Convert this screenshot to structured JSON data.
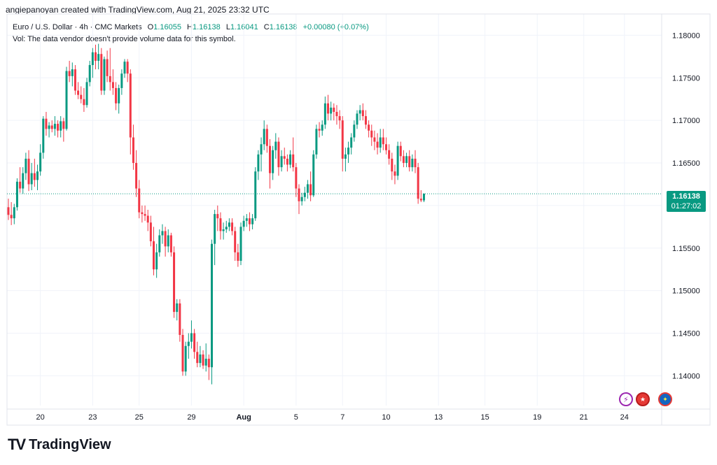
{
  "header": {
    "caption": "angiepanoyan created with TradingView.com, Aug 21, 2025 23:32 UTC"
  },
  "legend": {
    "symbol": "Euro / U.S. Dollar · 4h · CMC Markets",
    "o_key": "O",
    "o_val": "1.16055",
    "h_key": "H",
    "h_val": "1.16138",
    "l_key": "L",
    "l_val": "1.16041",
    "c_key": "C",
    "c_val": "1.16138",
    "change": "+0.00080 (+0.07%)"
  },
  "volume_note": "Vol: The data vendor doesn't provide volume data for this symbol.",
  "price_badge": {
    "price": "1.16138",
    "countdown": "01:27:02"
  },
  "icons": [
    "flash-icon",
    "us-flag-icon",
    "eu-flag-icon"
  ],
  "logo": {
    "text": "TradingView",
    "mark": "TV"
  },
  "colors": {
    "up": "#089981",
    "down": "#f23645",
    "grid": "#f0f3fa",
    "last_price": "#089981"
  },
  "chart_data": {
    "type": "candlestick",
    "title": "Euro / U.S. Dollar · 4h · CMC Markets",
    "ylim": [
      1.1365,
      1.1825
    ],
    "y_ticks": [
      1.18,
      1.175,
      1.17,
      1.165,
      1.16,
      1.155,
      1.15,
      1.145,
      1.14
    ],
    "y_tick_labels": [
      "1.18000",
      "1.17500",
      "1.17000",
      "1.16500",
      "",
      "1.15500",
      "1.15000",
      "1.14500",
      "1.14000"
    ],
    "x_ticks": [
      {
        "label": "20",
        "bar": 11,
        "month": false
      },
      {
        "label": "23",
        "bar": 29,
        "month": false
      },
      {
        "label": "25",
        "bar": 45,
        "month": false
      },
      {
        "label": "29",
        "bar": 63,
        "month": false
      },
      {
        "label": "Aug",
        "bar": 81,
        "month": true
      },
      {
        "label": "5",
        "bar": 99,
        "month": false
      },
      {
        "label": "7",
        "bar": 115,
        "month": false
      },
      {
        "label": "10",
        "bar": 130,
        "month": false
      },
      {
        "label": "13",
        "bar": 148,
        "month": false
      },
      {
        "label": "15",
        "bar": 164,
        "month": false
      },
      {
        "label": "19",
        "bar": 182,
        "month": false
      },
      {
        "label": "21",
        "bar": 198,
        "month": false
      },
      {
        "label": "24",
        "bar": 212,
        "month": false
      }
    ],
    "last_price": 1.16138,
    "grid": true,
    "candles": [
      [
        1.1598,
        1.1608,
        1.1583,
        1.1589
      ],
      [
        1.1589,
        1.1604,
        1.1577,
        1.1585
      ],
      [
        1.1585,
        1.1602,
        1.1578,
        1.1598
      ],
      [
        1.1598,
        1.1632,
        1.1594,
        1.1628
      ],
      [
        1.1628,
        1.1645,
        1.1615,
        1.162
      ],
      [
        1.162,
        1.1645,
        1.1614,
        1.1638
      ],
      [
        1.1638,
        1.1662,
        1.163,
        1.1655
      ],
      [
        1.1655,
        1.1665,
        1.1617,
        1.1625
      ],
      [
        1.1625,
        1.165,
        1.1618,
        1.1638
      ],
      [
        1.1638,
        1.1655,
        1.1622,
        1.163
      ],
      [
        1.163,
        1.1648,
        1.1618,
        1.164
      ],
      [
        1.164,
        1.1672,
        1.1635,
        1.1662
      ],
      [
        1.1662,
        1.1705,
        1.1655,
        1.1702
      ],
      [
        1.1702,
        1.171,
        1.1682,
        1.169
      ],
      [
        1.169,
        1.1698,
        1.168,
        1.1694
      ],
      [
        1.1694,
        1.17,
        1.1686,
        1.169
      ],
      [
        1.169,
        1.1705,
        1.1682,
        1.1696
      ],
      [
        1.1696,
        1.17,
        1.168,
        1.1688
      ],
      [
        1.1688,
        1.1705,
        1.168,
        1.1699
      ],
      [
        1.1699,
        1.1703,
        1.1675,
        1.169
      ],
      [
        1.169,
        1.1763,
        1.1688,
        1.1758
      ],
      [
        1.1758,
        1.177,
        1.1745,
        1.1752
      ],
      [
        1.1752,
        1.1768,
        1.174,
        1.176
      ],
      [
        1.176,
        1.1765,
        1.173,
        1.1735
      ],
      [
        1.1735,
        1.1745,
        1.1725,
        1.173
      ],
      [
        1.173,
        1.174,
        1.172,
        1.1725
      ],
      [
        1.1725,
        1.1738,
        1.171,
        1.1718
      ],
      [
        1.1718,
        1.175,
        1.1715,
        1.1745
      ],
      [
        1.1745,
        1.177,
        1.174,
        1.1765
      ],
      [
        1.1765,
        1.1785,
        1.175,
        1.178
      ],
      [
        1.178,
        1.1789,
        1.176,
        1.177
      ],
      [
        1.177,
        1.179,
        1.176,
        1.1778
      ],
      [
        1.1778,
        1.1785,
        1.173,
        1.1735
      ],
      [
        1.1735,
        1.1775,
        1.173,
        1.1772
      ],
      [
        1.1772,
        1.1782,
        1.1745,
        1.1752
      ],
      [
        1.1752,
        1.1785,
        1.1735,
        1.1745
      ],
      [
        1.1745,
        1.176,
        1.173,
        1.1738
      ],
      [
        1.1738,
        1.1745,
        1.1712,
        1.172
      ],
      [
        1.172,
        1.1742,
        1.1708,
        1.1738
      ],
      [
        1.1738,
        1.176,
        1.173,
        1.1755
      ],
      [
        1.1755,
        1.1772,
        1.175,
        1.1769
      ],
      [
        1.1769,
        1.1772,
        1.1745,
        1.1755
      ],
      [
        1.1755,
        1.176,
        1.166,
        1.168
      ],
      [
        1.168,
        1.1695,
        1.1642,
        1.165
      ],
      [
        1.165,
        1.1665,
        1.161,
        1.162
      ],
      [
        1.162,
        1.163,
        1.1585,
        1.1592
      ],
      [
        1.1592,
        1.16,
        1.158,
        1.159
      ],
      [
        1.159,
        1.16,
        1.1582,
        1.1588
      ],
      [
        1.1588,
        1.1595,
        1.157,
        1.158
      ],
      [
        1.158,
        1.1588,
        1.1552,
        1.1558
      ],
      [
        1.1558,
        1.1575,
        1.1518,
        1.1525
      ],
      [
        1.1525,
        1.1555,
        1.1515,
        1.1545
      ],
      [
        1.1545,
        1.1572,
        1.154,
        1.1565
      ],
      [
        1.1565,
        1.1578,
        1.1555,
        1.157
      ],
      [
        1.157,
        1.1575,
        1.154,
        1.1552
      ],
      [
        1.1552,
        1.1572,
        1.1545,
        1.1565
      ],
      [
        1.1565,
        1.1568,
        1.154,
        1.1545
      ],
      [
        1.1545,
        1.1552,
        1.1468,
        1.1475
      ],
      [
        1.1475,
        1.149,
        1.1465,
        1.1485
      ],
      [
        1.1485,
        1.149,
        1.144,
        1.1448
      ],
      [
        1.1448,
        1.1455,
        1.14,
        1.1405
      ],
      [
        1.1405,
        1.144,
        1.14,
        1.1435
      ],
      [
        1.1435,
        1.145,
        1.142,
        1.144
      ],
      [
        1.144,
        1.1465,
        1.1432,
        1.145
      ],
      [
        1.145,
        1.1455,
        1.142,
        1.1428
      ],
      [
        1.1428,
        1.144,
        1.141,
        1.1415
      ],
      [
        1.1415,
        1.1435,
        1.141,
        1.1425
      ],
      [
        1.1425,
        1.143,
        1.1408,
        1.1412
      ],
      [
        1.1412,
        1.1438,
        1.1405,
        1.142
      ],
      [
        1.142,
        1.1425,
        1.1395,
        1.141
      ],
      [
        1.141,
        1.156,
        1.139,
        1.1555
      ],
      [
        1.1555,
        1.1595,
        1.153,
        1.159
      ],
      [
        1.159,
        1.16,
        1.157,
        1.1585
      ],
      [
        1.1585,
        1.1592,
        1.156,
        1.157
      ],
      [
        1.157,
        1.158,
        1.156,
        1.1572
      ],
      [
        1.1572,
        1.1582,
        1.1568,
        1.1575
      ],
      [
        1.1575,
        1.1585,
        1.157,
        1.158
      ],
      [
        1.158,
        1.1585,
        1.1565,
        1.157
      ],
      [
        1.157,
        1.1575,
        1.1535,
        1.1545
      ],
      [
        1.1545,
        1.1555,
        1.1528,
        1.1535
      ],
      [
        1.1535,
        1.158,
        1.153,
        1.1575
      ],
      [
        1.1575,
        1.1588,
        1.157,
        1.1582
      ],
      [
        1.1582,
        1.159,
        1.1575,
        1.1585
      ],
      [
        1.1585,
        1.1592,
        1.157,
        1.1578
      ],
      [
        1.1578,
        1.159,
        1.1572,
        1.1585
      ],
      [
        1.1585,
        1.1645,
        1.1582,
        1.164
      ],
      [
        1.164,
        1.1665,
        1.163,
        1.166
      ],
      [
        1.166,
        1.168,
        1.164,
        1.1672
      ],
      [
        1.1672,
        1.17,
        1.1665,
        1.169
      ],
      [
        1.169,
        1.1695,
        1.1662,
        1.167
      ],
      [
        1.167,
        1.1678,
        1.162,
        1.1638
      ],
      [
        1.1638,
        1.167,
        1.163,
        1.1665
      ],
      [
        1.1665,
        1.1685,
        1.1655,
        1.1675
      ],
      [
        1.1675,
        1.168,
        1.1635,
        1.1645
      ],
      [
        1.1645,
        1.1665,
        1.164,
        1.1658
      ],
      [
        1.1658,
        1.1668,
        1.1648,
        1.1655
      ],
      [
        1.1655,
        1.166,
        1.164,
        1.1648
      ],
      [
        1.1648,
        1.1665,
        1.1644,
        1.166
      ],
      [
        1.166,
        1.168,
        1.164,
        1.1645
      ],
      [
        1.1645,
        1.165,
        1.161,
        1.162
      ],
      [
        1.162,
        1.1625,
        1.159,
        1.1605
      ],
      [
        1.1605,
        1.1615,
        1.16,
        1.161
      ],
      [
        1.161,
        1.1622,
        1.1605,
        1.1615
      ],
      [
        1.1615,
        1.163,
        1.1608,
        1.1625
      ],
      [
        1.1625,
        1.164,
        1.1605,
        1.1612
      ],
      [
        1.1612,
        1.1665,
        1.161,
        1.166
      ],
      [
        1.166,
        1.1695,
        1.1655,
        1.169
      ],
      [
        1.169,
        1.1698,
        1.168,
        1.1688
      ],
      [
        1.1688,
        1.17,
        1.1682,
        1.1695
      ],
      [
        1.1695,
        1.1728,
        1.169,
        1.172
      ],
      [
        1.172,
        1.173,
        1.17,
        1.1708
      ],
      [
        1.1708,
        1.1722,
        1.17,
        1.1715
      ],
      [
        1.1715,
        1.172,
        1.17,
        1.171
      ],
      [
        1.171,
        1.1718,
        1.1695,
        1.1705
      ],
      [
        1.1705,
        1.1712,
        1.169,
        1.17
      ],
      [
        1.17,
        1.1705,
        1.164,
        1.1655
      ],
      [
        1.1655,
        1.1668,
        1.164,
        1.166
      ],
      [
        1.166,
        1.1675,
        1.165,
        1.1668
      ],
      [
        1.1668,
        1.1685,
        1.166,
        1.168
      ],
      [
        1.168,
        1.17,
        1.1675,
        1.1695
      ],
      [
        1.1695,
        1.1712,
        1.169,
        1.1708
      ],
      [
        1.1708,
        1.1718,
        1.17,
        1.1712
      ],
      [
        1.1712,
        1.172,
        1.17,
        1.1705
      ],
      [
        1.1705,
        1.1712,
        1.169,
        1.1695
      ],
      [
        1.1695,
        1.17,
        1.168,
        1.1688
      ],
      [
        1.1688,
        1.1695,
        1.167,
        1.168
      ],
      [
        1.168,
        1.1688,
        1.1665,
        1.1675
      ],
      [
        1.1675,
        1.1685,
        1.166,
        1.1668
      ],
      [
        1.1668,
        1.169,
        1.1662,
        1.168
      ],
      [
        1.168,
        1.169,
        1.1665,
        1.1672
      ],
      [
        1.1672,
        1.168,
        1.166,
        1.1665
      ],
      [
        1.1665,
        1.1672,
        1.1648,
        1.1655
      ],
      [
        1.1655,
        1.1662,
        1.163,
        1.164
      ],
      [
        1.164,
        1.1648,
        1.1625,
        1.1635
      ],
      [
        1.1635,
        1.1675,
        1.163,
        1.167
      ],
      [
        1.167,
        1.1675,
        1.1652,
        1.1658
      ],
      [
        1.1658,
        1.1665,
        1.1645,
        1.165
      ],
      [
        1.165,
        1.1662,
        1.1645,
        1.1658
      ],
      [
        1.1658,
        1.1665,
        1.164,
        1.1645
      ],
      [
        1.1645,
        1.166,
        1.164,
        1.1655
      ],
      [
        1.1655,
        1.1665,
        1.1638,
        1.1645
      ],
      [
        1.1645,
        1.165,
        1.1602,
        1.1608
      ],
      [
        1.1608,
        1.1618,
        1.1604,
        1.1606
      ],
      [
        1.1606,
        1.1614,
        1.1604,
        1.1614
      ]
    ]
  }
}
